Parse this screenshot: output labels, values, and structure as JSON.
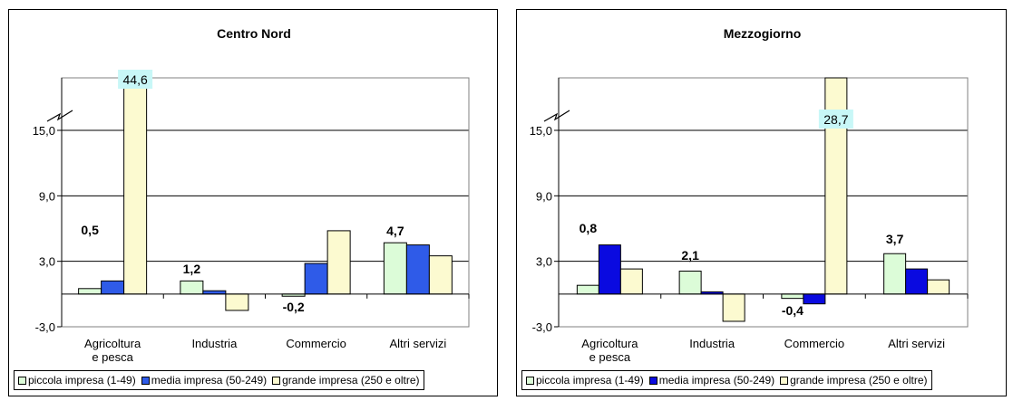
{
  "chart_data": [
    {
      "type": "bar",
      "title": "Centro Nord",
      "categories": [
        "Agricoltura e pesca",
        "Industria",
        "Commercio",
        "Altri servizi"
      ],
      "y_ticks": [
        "-3,0",
        "3,0",
        "9,0",
        "15,0"
      ],
      "axis_break": "between 15,0 and the top of the plot (broken y-axis)",
      "series": [
        {
          "name": "piccola impresa (1-49)",
          "color": "#dcfcd8",
          "values": [
            0.5,
            1.2,
            -0.2,
            4.7
          ]
        },
        {
          "name": "media impresa (50-249)",
          "color": "#2f5be8",
          "values": [
            1.2,
            0.3,
            2.8,
            4.5
          ]
        },
        {
          "name": "grande impresa (250 e oltre)",
          "color": "#fcfad0",
          "values": [
            44.6,
            -1.5,
            5.8,
            3.5
          ]
        }
      ],
      "data_labels": [
        "0,5",
        "1,2",
        "-0,2",
        "4,7"
      ],
      "highlight_label": "44,6",
      "legend_position": "bottom"
    },
    {
      "type": "bar",
      "title": "Mezzogiorno",
      "categories": [
        "Agricoltura e pesca",
        "Industria",
        "Commercio",
        "Altri servizi"
      ],
      "y_ticks": [
        "-3,0",
        "3,0",
        "9,0",
        "15,0"
      ],
      "axis_break": "between 15,0 and the top of the plot (broken y-axis)",
      "series": [
        {
          "name": "piccola impresa (1-49)",
          "color": "#dcfcd8",
          "values": [
            0.8,
            2.1,
            -0.4,
            3.7
          ]
        },
        {
          "name": "media impresa (50-249)",
          "color": "#0a0ae0",
          "values": [
            4.5,
            0.2,
            -0.9,
            2.3
          ]
        },
        {
          "name": "grande impresa (250 e oltre)",
          "color": "#fcfad0",
          "values": [
            2.3,
            -2.5,
            28.7,
            1.3
          ]
        }
      ],
      "data_labels": [
        "0,8",
        "2,1",
        "-0,4",
        "3,7"
      ],
      "highlight_label": "28,7",
      "legend_position": "bottom"
    }
  ]
}
